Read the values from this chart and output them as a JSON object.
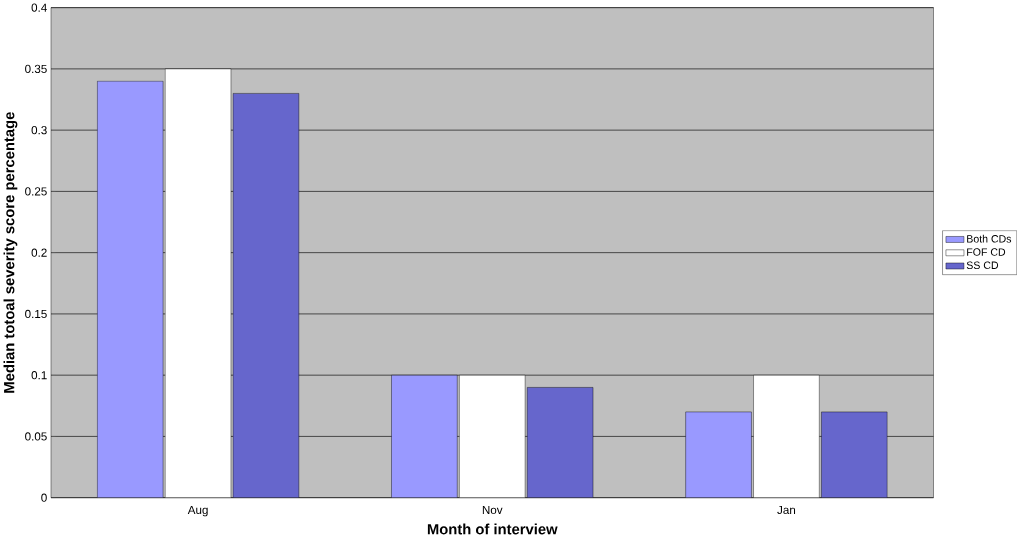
{
  "chart_data": {
    "type": "bar",
    "xlabel": "Month of interview",
    "ylabel": "Median totoal severity score percentage",
    "categories": [
      "Aug",
      "Nov",
      "Jan"
    ],
    "series": [
      {
        "name": "Both CDs",
        "color": "#9999ff",
        "values": [
          0.34,
          0.1,
          0.07
        ]
      },
      {
        "name": "FOF CD",
        "color": "#ffffff",
        "values": [
          0.35,
          0.1,
          0.1
        ]
      },
      {
        "name": "SS CD",
        "color": "#6666cc",
        "values": [
          0.33,
          0.09,
          0.07
        ]
      }
    ],
    "ylim": [
      0,
      0.4
    ],
    "yticks": [
      0,
      0.05,
      0.1,
      0.15,
      0.2,
      0.25,
      0.3,
      0.35,
      0.4
    ],
    "grid": "y",
    "legend": "right"
  }
}
